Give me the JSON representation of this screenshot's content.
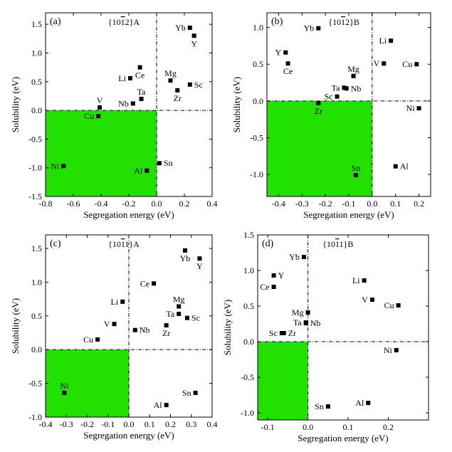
{
  "chart_data": [
    {
      "type": "scatter",
      "panel_label": "(a)",
      "plane_label": "{10̅1̅2}A",
      "plane_parts": [
        "{10",
        "1",
        "2}A"
      ],
      "xlabel": "Segregation energy  (eV)",
      "ylabel": "Solubility (eV)",
      "xlim": [
        -0.8,
        0.4
      ],
      "ylim": [
        -1.5,
        1.7
      ],
      "xticks": [
        "-0.8",
        "-0.6",
        "-0.4",
        "-0.2",
        "0.0",
        "0.2",
        "0.4"
      ],
      "yticks": [
        "-1.5",
        "-1.0",
        "-0.5",
        "0.0",
        "0.5",
        "1.0",
        "1.5"
      ],
      "xtick_values": [
        -0.8,
        -0.6,
        -0.4,
        -0.2,
        0.0,
        0.2,
        0.4
      ],
      "ytick_values": [
        -1.5,
        -1.0,
        -0.5,
        0.0,
        0.5,
        1.0,
        1.5
      ],
      "shaded_region": "x<0 and y<0",
      "shade_color": "#22e000",
      "points": [
        {
          "label": "Yb",
          "x": 0.24,
          "y": 1.44,
          "pos": "left"
        },
        {
          "label": "Y",
          "x": 0.27,
          "y": 1.3,
          "pos": "below"
        },
        {
          "label": "Ce",
          "x": -0.12,
          "y": 0.75,
          "pos": "below"
        },
        {
          "label": "Li",
          "x": -0.19,
          "y": 0.56,
          "pos": "left"
        },
        {
          "label": "Mg",
          "x": 0.1,
          "y": 0.52,
          "pos": "above"
        },
        {
          "label": "Sc",
          "x": 0.24,
          "y": 0.45,
          "pos": "right"
        },
        {
          "label": "Zr",
          "x": 0.15,
          "y": 0.35,
          "pos": "below"
        },
        {
          "label": "Ta",
          "x": -0.11,
          "y": 0.2,
          "pos": "above"
        },
        {
          "label": "Nb",
          "x": -0.17,
          "y": 0.12,
          "pos": "left"
        },
        {
          "label": "V",
          "x": -0.41,
          "y": 0.05,
          "pos": "above"
        },
        {
          "label": "Cu",
          "x": -0.42,
          "y": -0.1,
          "pos": "left"
        },
        {
          "label": "Ni",
          "x": -0.67,
          "y": -0.97,
          "pos": "left"
        },
        {
          "label": "Sn",
          "x": 0.02,
          "y": -0.92,
          "pos": "right"
        },
        {
          "label": "Al",
          "x": -0.07,
          "y": -1.05,
          "pos": "left"
        }
      ]
    },
    {
      "type": "scatter",
      "panel_label": "(b)",
      "plane_label": "{10̅1̅2}B",
      "plane_parts": [
        "{10",
        "1",
        "2}B"
      ],
      "xlabel": "Segregation energy  (eV)",
      "ylabel": "Solubility (eV)",
      "xlim": [
        -0.45,
        0.25
      ],
      "ylim": [
        -1.3,
        1.2
      ],
      "xticks": [
        "-0.4",
        "-0.3",
        "-0.2",
        "-0.1",
        "0.0",
        "0.1",
        "0.2"
      ],
      "yticks": [
        "-1.0",
        "-0.5",
        "0.0",
        "0.5",
        "1.0"
      ],
      "xtick_values": [
        -0.4,
        -0.3,
        -0.2,
        -0.1,
        0.0,
        0.1,
        0.2
      ],
      "ytick_values": [
        -1.0,
        -0.5,
        0.0,
        0.5,
        1.0
      ],
      "shaded_region": "x<0 and y<0",
      "shade_color": "#22e000",
      "points": [
        {
          "label": "Yb",
          "x": -0.23,
          "y": 0.99,
          "pos": "left"
        },
        {
          "label": "Li",
          "x": 0.08,
          "y": 0.82,
          "pos": "left"
        },
        {
          "label": "Y",
          "x": -0.37,
          "y": 0.66,
          "pos": "left"
        },
        {
          "label": "Ce",
          "x": -0.36,
          "y": 0.51,
          "pos": "below"
        },
        {
          "label": "V",
          "x": 0.05,
          "y": 0.51,
          "pos": "left"
        },
        {
          "label": "Cu",
          "x": 0.19,
          "y": 0.5,
          "pos": "left"
        },
        {
          "label": "Mg",
          "x": -0.08,
          "y": 0.34,
          "pos": "above"
        },
        {
          "label": "Ta",
          "x": -0.12,
          "y": 0.18,
          "pos": "left"
        },
        {
          "label": "Nb",
          "x": -0.11,
          "y": 0.17,
          "pos": "right"
        },
        {
          "label": "Sc",
          "x": -0.15,
          "y": 0.06,
          "pos": "left"
        },
        {
          "label": "Zr",
          "x": -0.23,
          "y": -0.03,
          "pos": "below"
        },
        {
          "label": "Ni",
          "x": 0.2,
          "y": -0.1,
          "pos": "left"
        },
        {
          "label": "Al",
          "x": 0.1,
          "y": -0.89,
          "pos": "right"
        },
        {
          "label": "Sn",
          "x": -0.07,
          "y": -1.01,
          "pos": "above"
        }
      ]
    },
    {
      "type": "scatter",
      "panel_label": "(c)",
      "plane_label": "{10̅1̅1}A",
      "plane_parts": [
        "{10",
        "1",
        "1}A"
      ],
      "xlabel": "Segregation energy  (eV)",
      "ylabel": "Solubility (eV)",
      "xlim": [
        -0.4,
        0.4
      ],
      "ylim": [
        -1.0,
        1.7
      ],
      "xticks": [
        "-0.4",
        "-0.3",
        "-0.2",
        "-0.1",
        "0.0",
        "0.1",
        "0.2",
        "0.3",
        "0.4"
      ],
      "yticks": [
        "-1.0",
        "-0.5",
        "0.0",
        "0.5",
        "1.0",
        "1.5"
      ],
      "xtick_values": [
        -0.4,
        -0.3,
        -0.2,
        -0.1,
        0.0,
        0.1,
        0.2,
        0.3,
        0.4
      ],
      "ytick_values": [
        -1.0,
        -0.5,
        0.0,
        0.5,
        1.0,
        1.5
      ],
      "shaded_region": "x<0 and y<0",
      "shade_color": "#22e000",
      "points": [
        {
          "label": "Yb",
          "x": 0.27,
          "y": 1.47,
          "pos": "below"
        },
        {
          "label": "Y",
          "x": 0.34,
          "y": 1.35,
          "pos": "below"
        },
        {
          "label": "Ce",
          "x": 0.12,
          "y": 0.98,
          "pos": "left"
        },
        {
          "label": "Li",
          "x": -0.03,
          "y": 0.71,
          "pos": "left"
        },
        {
          "label": "Mg",
          "x": 0.24,
          "y": 0.64,
          "pos": "above"
        },
        {
          "label": "Ta",
          "x": 0.24,
          "y": 0.53,
          "pos": "left"
        },
        {
          "label": "Sc",
          "x": 0.28,
          "y": 0.47,
          "pos": "right"
        },
        {
          "label": "V",
          "x": -0.07,
          "y": 0.38,
          "pos": "left"
        },
        {
          "label": "Zr",
          "x": 0.18,
          "y": 0.36,
          "pos": "below"
        },
        {
          "label": "Nb",
          "x": 0.03,
          "y": 0.29,
          "pos": "right"
        },
        {
          "label": "Cu",
          "x": -0.15,
          "y": 0.15,
          "pos": "left"
        },
        {
          "label": "Ni",
          "x": -0.31,
          "y": -0.64,
          "pos": "above"
        },
        {
          "label": "Sn",
          "x": 0.32,
          "y": -0.64,
          "pos": "left"
        },
        {
          "label": "Al",
          "x": 0.18,
          "y": -0.82,
          "pos": "left"
        }
      ]
    },
    {
      "type": "scatter",
      "panel_label": "(d)",
      "plane_label": "{10̅1̅1}B",
      "plane_parts": [
        "{10",
        "1",
        "1}B"
      ],
      "xlabel": "Segregation energy  (eV)",
      "ylabel": "Solubility (eV)",
      "xlim": [
        -0.125,
        0.3
      ],
      "ylim": [
        -1.1,
        1.5
      ],
      "xticks": [
        "-0.1",
        "0.0",
        "0.1",
        "0.2"
      ],
      "yticks": [
        "-1.0",
        "-0.5",
        "0.0",
        "0.5",
        "1.0",
        "1.5"
      ],
      "xtick_values": [
        -0.1,
        0.0,
        0.1,
        0.2
      ],
      "ytick_values": [
        -1.0,
        -0.5,
        0.0,
        0.5,
        1.0,
        1.5
      ],
      "shaded_region": "x<0 and y<0",
      "shade_color": "#22e000",
      "points": [
        {
          "label": "Yb",
          "x": -0.01,
          "y": 1.19,
          "pos": "left"
        },
        {
          "label": "Y",
          "x": -0.085,
          "y": 0.93,
          "pos": "right"
        },
        {
          "label": "Ce",
          "x": -0.085,
          "y": 0.77,
          "pos": "left"
        },
        {
          "label": "Li",
          "x": 0.14,
          "y": 0.86,
          "pos": "left"
        },
        {
          "label": "V",
          "x": 0.16,
          "y": 0.59,
          "pos": "left"
        },
        {
          "label": "Cu",
          "x": 0.225,
          "y": 0.51,
          "pos": "left"
        },
        {
          "label": "Mg",
          "x": 0.0,
          "y": 0.41,
          "pos": "left"
        },
        {
          "label": "Ta",
          "x": -0.005,
          "y": 0.27,
          "pos": "left"
        },
        {
          "label": "Nb",
          "x": -0.005,
          "y": 0.26,
          "pos": "right"
        },
        {
          "label": "Sc",
          "x": -0.065,
          "y": 0.12,
          "pos": "left"
        },
        {
          "label": "Zr",
          "x": -0.06,
          "y": 0.12,
          "pos": "right"
        },
        {
          "label": "Ni",
          "x": 0.22,
          "y": -0.12,
          "pos": "left"
        },
        {
          "label": "Al",
          "x": 0.15,
          "y": -0.86,
          "pos": "left"
        },
        {
          "label": "Sn",
          "x": 0.05,
          "y": -0.91,
          "pos": "left"
        }
      ]
    }
  ]
}
